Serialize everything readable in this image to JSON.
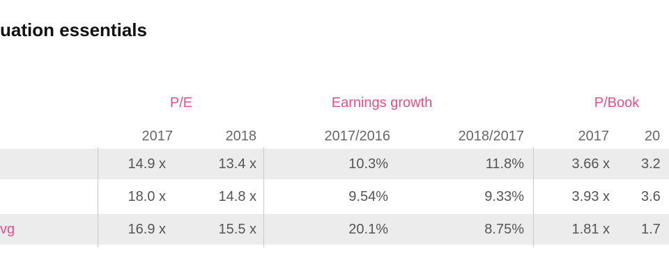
{
  "header": {
    "title": "uation essentials"
  },
  "table": {
    "groups": [
      "P/E",
      "Earnings growth",
      "P/Book"
    ],
    "columns": [
      "2017",
      "2018",
      "2017/2016",
      "2018/2017",
      "2017",
      "20"
    ],
    "rows": [
      {
        "cells": [
          "14.9 x",
          "13.4 x",
          "10.3%",
          "11.8%",
          "3.66 x",
          "3.2"
        ]
      },
      {
        "cells": [
          "18.0 x",
          "14.8 x",
          "9.54%",
          "9.33%",
          "3.93 x",
          "3.6"
        ]
      },
      {
        "label": "vg",
        "cells": [
          "16.9 x",
          "15.5 x",
          "20.1%",
          "8.75%",
          "1.81 x",
          "1.7"
        ]
      }
    ]
  }
}
